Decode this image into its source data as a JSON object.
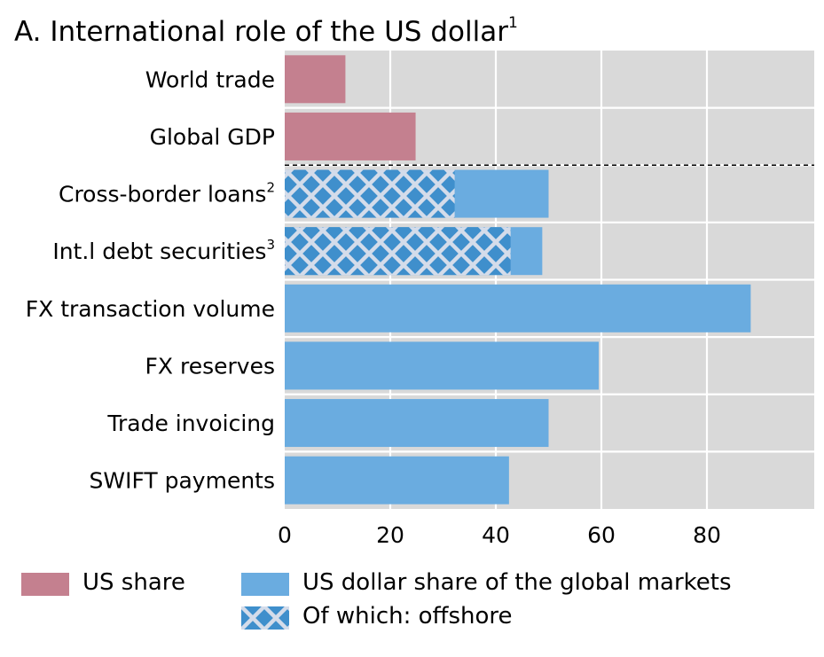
{
  "chart_data": {
    "type": "bar",
    "orientation": "horizontal",
    "title": "A. International role of the US dollar",
    "title_note": "1",
    "categories": [
      {
        "label": "World trade",
        "note": ""
      },
      {
        "label": "Global GDP",
        "note": ""
      },
      {
        "label": "Cross-border loans",
        "note": "2"
      },
      {
        "label": "Int.l debt securities",
        "note": "3"
      },
      {
        "label": "FX transaction volume",
        "note": ""
      },
      {
        "label": "FX reserves",
        "note": ""
      },
      {
        "label": "Trade invoicing",
        "note": ""
      },
      {
        "label": "SWIFT payments",
        "note": ""
      }
    ],
    "series": [
      {
        "name": "US share",
        "values": [
          11.5,
          24.8,
          null,
          null,
          null,
          null,
          null,
          null
        ],
        "color": "#c4808f"
      },
      {
        "name": "US dollar share of the global markets",
        "values": [
          null,
          null,
          50,
          48.8,
          88.3,
          59.5,
          50,
          42.5
        ],
        "color": "#6aace0"
      },
      {
        "name": "Of which: offshore",
        "values": [
          null,
          null,
          32.2,
          42.8,
          null,
          null,
          null,
          null
        ],
        "color": "#3f8fcc",
        "pattern": "crosshatch"
      }
    ],
    "xlim": [
      0,
      100
    ],
    "xticks": [
      "0",
      "20",
      "40",
      "60",
      "80"
    ],
    "xtick_values": [
      0,
      20,
      40,
      60,
      80
    ],
    "grid": true,
    "separator_after_category": "Global GDP",
    "legend_position": "bottom",
    "colors": {
      "plot_bg": "#d9d9d9",
      "grid": "#ffffff"
    }
  }
}
